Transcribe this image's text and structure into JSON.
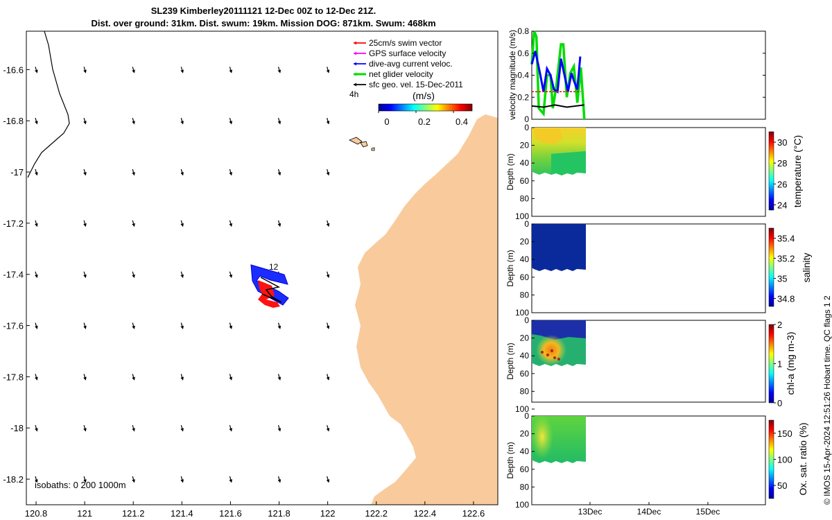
{
  "title": {
    "line1": "SL239 Kimberley20111121 12-Dec 00Z to 12-Dec 21Z.",
    "line2": "Dist. over ground: 31km. Dist. swum: 19km. Mission DOG: 871km. Swum: 468km"
  },
  "credit": "© IMOS 15-Apr-2024 12:51:26 Hobart time. QC flags 1  2",
  "colors": {
    "land": "#f9cb9c",
    "swim": "#ff0000",
    "gps": "#ff00ff",
    "dive_avg": "#0000ff",
    "net_glider": "#00dd00",
    "sfc_geo": "#000000"
  },
  "chart_data": [
    {
      "type": "map",
      "x_ticks": [
        "120.8",
        "121",
        "121.2",
        "121.4",
        "121.6",
        "121.8",
        "122",
        "122.2",
        "122.4",
        "122.6"
      ],
      "y_ticks": [
        "-16.6",
        "-16.8",
        "-17",
        "-17.2",
        "-17.4",
        "-17.6",
        "-17.8",
        "-18",
        "-18.2"
      ],
      "xlim": [
        120.76,
        122.7
      ],
      "ylim": [
        -18.3,
        -16.45
      ],
      "legend": [
        {
          "label": "25cm/s swim vector",
          "color": "#ff0000"
        },
        {
          "label": "GPS surface velocity",
          "color": "#ff00ff"
        },
        {
          "label": "dive-avg current veloc.",
          "color": "#0000ff"
        },
        {
          "label": "net glider velocity",
          "color": "#00dd00"
        },
        {
          "label": "sfc geo. vel. 15-Dec-2011",
          "color": "#000000"
        }
      ],
      "colorbar": {
        "label": "(m/s)",
        "ticks": [
          "0",
          "0.2",
          "0.4"
        ],
        "range": [
          0,
          0.5
        ]
      },
      "annotations": {
        "hour_label": "4h",
        "track_label": "12",
        "isobaths": "isobaths: 0   200  1000m"
      },
      "grid_lons": [
        120.8,
        121.0,
        121.2,
        121.4,
        121.6,
        121.8,
        122.0
      ],
      "grid_lats": [
        -16.6,
        -16.8,
        -17.0,
        -17.2,
        -17.4,
        -17.6,
        -17.8,
        -18.0,
        -18.2
      ],
      "track": [
        [
          121.7,
          -17.4
        ],
        [
          121.8,
          -17.43
        ],
        [
          121.74,
          -17.48
        ],
        [
          121.8,
          -17.5
        ]
      ]
    },
    {
      "type": "line",
      "ylabel": "velocity magnitude (m/s)",
      "ylim": [
        0,
        0.8
      ],
      "y_ticks": [
        "0",
        "0.2",
        "0.4",
        "0.6",
        "0.8"
      ],
      "xlim": [
        0,
        4
      ],
      "series": [
        {
          "name": "net glider velocity",
          "color": "#00dd00",
          "x": [
            0.0,
            0.04,
            0.08,
            0.12,
            0.2,
            0.26,
            0.32,
            0.36,
            0.42,
            0.5,
            0.54,
            0.6,
            0.66,
            0.72,
            0.78,
            0.84,
            0.9
          ],
          "y": [
            0.5,
            0.8,
            0.75,
            0.1,
            0.05,
            0.4,
            0.4,
            0.1,
            0.3,
            0.68,
            0.68,
            0.2,
            0.42,
            0.48,
            0.15,
            0.47,
            0.0
          ]
        },
        {
          "name": "dive-avg current veloc.",
          "color": "#0000ff",
          "x": [
            0.0,
            0.06,
            0.14,
            0.2,
            0.26,
            0.32,
            0.38,
            0.44,
            0.5,
            0.56,
            0.62,
            0.68,
            0.72,
            0.78,
            0.83
          ],
          "y": [
            0.5,
            0.62,
            0.42,
            0.25,
            0.46,
            0.4,
            0.27,
            0.25,
            0.55,
            0.4,
            0.25,
            0.42,
            0.35,
            0.27,
            0.57
          ]
        },
        {
          "name": "25cm/s swim vector",
          "color": "#ff0000",
          "x": [
            0.0,
            0.2,
            0.4,
            0.6,
            0.84
          ],
          "y": [
            0.25,
            0.25,
            0.25,
            0.25,
            0.25
          ]
        },
        {
          "name": "sfc geo. vel. 15-Dec-2011",
          "color": "#000000",
          "x": [
            0.0,
            0.2,
            0.4,
            0.6,
            0.9
          ],
          "y": [
            0.12,
            0.11,
            0.13,
            0.11,
            0.13
          ]
        }
      ]
    },
    {
      "type": "heatmap",
      "ylabel": "Depth (m)",
      "clabel": "temperature (°C)",
      "ylim": [
        100,
        0
      ],
      "y_ticks": [
        "0",
        "20",
        "40",
        "60",
        "80",
        "100"
      ],
      "cticks": [
        "24",
        "26",
        "28",
        "30"
      ],
      "crange": [
        23.5,
        31
      ]
    },
    {
      "type": "heatmap",
      "ylabel": "Depth (m)",
      "clabel": "salinity",
      "ylim": [
        100,
        0
      ],
      "y_ticks": [
        "0",
        "20",
        "40",
        "60",
        "80",
        "100"
      ],
      "cticks": [
        "34.8",
        "35",
        "35.2",
        "35.4"
      ],
      "crange": [
        34.72,
        35.5
      ]
    },
    {
      "type": "heatmap",
      "ylabel": "Depth (m)",
      "clabel": "chl-a (mg m-3)",
      "ylim": [
        100,
        0
      ],
      "y_ticks": [
        "0",
        "20",
        "40",
        "60",
        "80",
        "100"
      ],
      "cticks": [
        "0",
        "1",
        "2"
      ],
      "crange": [
        0,
        2
      ]
    },
    {
      "type": "heatmap",
      "ylabel": "Depth (m)",
      "clabel": "Ox. sat. ratio (%)",
      "ylim": [
        100,
        0
      ],
      "y_ticks": [
        "0",
        "20",
        "40",
        "60",
        "80",
        "100"
      ],
      "cticks": [
        "50",
        "100",
        "150"
      ],
      "crange": [
        25,
        175
      ],
      "x_ticks": [
        "13Dec",
        "14Dec",
        "15Dec"
      ]
    }
  ]
}
